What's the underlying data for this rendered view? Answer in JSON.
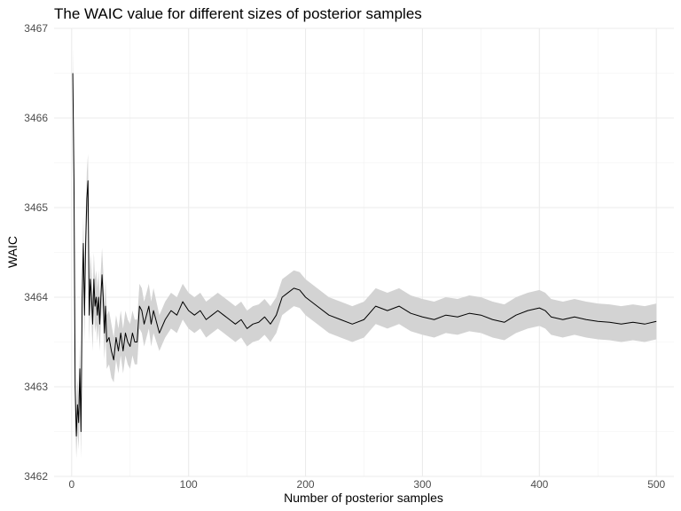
{
  "chart_data": {
    "type": "line",
    "title": "The WAIC value for different sizes of posterior samples",
    "xlabel": "Number of posterior samples",
    "ylabel": "WAIC",
    "xlim": [
      -15,
      515
    ],
    "ylim": [
      3462,
      3467
    ],
    "xticks": [
      0,
      100,
      200,
      300,
      400,
      500
    ],
    "yticks": [
      3462,
      3463,
      3464,
      3465,
      3466,
      3467
    ],
    "x_tick_labels": [
      "0",
      "100",
      "200",
      "300",
      "400",
      "500"
    ],
    "y_tick_labels": [
      "3462",
      "3463",
      "3464",
      "3465",
      "3466",
      "3467"
    ],
    "grid": true,
    "band_color": "#d3d3d3",
    "line_color": "#000000",
    "series": [
      {
        "x": [
          1,
          2,
          3,
          4,
          5,
          6,
          7,
          8,
          9,
          10,
          11,
          12,
          13,
          14,
          15,
          16,
          17,
          18,
          19,
          20,
          21,
          22,
          23,
          24,
          25,
          26,
          27,
          28,
          29,
          30,
          32,
          34,
          36,
          38,
          40,
          42,
          44,
          46,
          48,
          50,
          52,
          54,
          56,
          58,
          60,
          62,
          64,
          66,
          68,
          70,
          75,
          80,
          85,
          90,
          95,
          100,
          105,
          110,
          115,
          120,
          125,
          130,
          135,
          140,
          145,
          150,
          155,
          160,
          165,
          170,
          175,
          180,
          185,
          190,
          195,
          200,
          210,
          220,
          230,
          240,
          250,
          260,
          270,
          280,
          290,
          300,
          310,
          320,
          330,
          340,
          350,
          360,
          370,
          380,
          390,
          400,
          405,
          410,
          420,
          430,
          440,
          450,
          460,
          470,
          480,
          490,
          500
        ],
        "y": [
          3466.5,
          3465.3,
          3463.0,
          3462.45,
          3462.8,
          3462.6,
          3463.2,
          3462.5,
          3464.0,
          3464.6,
          3463.8,
          3464.6,
          3465.1,
          3465.3,
          3463.8,
          3464.2,
          3464.0,
          3463.7,
          3464.2,
          3463.9,
          3464.0,
          3463.8,
          3464.0,
          3463.7,
          3464.0,
          3464.25,
          3464.0,
          3463.6,
          3463.9,
          3463.5,
          3463.55,
          3463.4,
          3463.3,
          3463.55,
          3463.4,
          3463.6,
          3463.4,
          3463.6,
          3463.5,
          3463.45,
          3463.6,
          3463.5,
          3463.5,
          3463.9,
          3463.85,
          3463.7,
          3463.8,
          3463.9,
          3463.7,
          3463.85,
          3463.6,
          3463.75,
          3463.85,
          3463.8,
          3463.95,
          3463.85,
          3463.8,
          3463.85,
          3463.75,
          3463.8,
          3463.85,
          3463.8,
          3463.75,
          3463.7,
          3463.75,
          3463.65,
          3463.7,
          3463.72,
          3463.78,
          3463.7,
          3463.8,
          3464.0,
          3464.05,
          3464.1,
          3464.08,
          3464.0,
          3463.9,
          3463.8,
          3463.75,
          3463.7,
          3463.75,
          3463.9,
          3463.85,
          3463.9,
          3463.82,
          3463.78,
          3463.75,
          3463.8,
          3463.78,
          3463.82,
          3463.8,
          3463.75,
          3463.72,
          3463.8,
          3463.85,
          3463.88,
          3463.85,
          3463.78,
          3463.75,
          3463.78,
          3463.75,
          3463.73,
          3463.72,
          3463.7,
          3463.72,
          3463.7,
          3463.73
        ],
        "lower": [
          3466.2,
          3465.0,
          3462.7,
          3462.2,
          3462.5,
          3462.3,
          3462.9,
          3462.2,
          3463.7,
          3464.3,
          3463.5,
          3464.3,
          3464.8,
          3465.0,
          3463.5,
          3463.9,
          3463.7,
          3463.4,
          3463.9,
          3463.6,
          3463.7,
          3463.5,
          3463.7,
          3463.4,
          3463.7,
          3463.95,
          3463.7,
          3463.3,
          3463.6,
          3463.2,
          3463.25,
          3463.1,
          3463.05,
          3463.3,
          3463.15,
          3463.35,
          3463.15,
          3463.35,
          3463.25,
          3463.2,
          3463.35,
          3463.25,
          3463.25,
          3463.65,
          3463.6,
          3463.45,
          3463.55,
          3463.65,
          3463.45,
          3463.6,
          3463.4,
          3463.55,
          3463.65,
          3463.6,
          3463.75,
          3463.65,
          3463.6,
          3463.65,
          3463.55,
          3463.6,
          3463.65,
          3463.6,
          3463.55,
          3463.5,
          3463.55,
          3463.45,
          3463.5,
          3463.52,
          3463.58,
          3463.5,
          3463.6,
          3463.8,
          3463.85,
          3463.9,
          3463.88,
          3463.8,
          3463.7,
          3463.6,
          3463.55,
          3463.5,
          3463.55,
          3463.7,
          3463.65,
          3463.7,
          3463.62,
          3463.58,
          3463.55,
          3463.6,
          3463.58,
          3463.62,
          3463.6,
          3463.55,
          3463.52,
          3463.6,
          3463.65,
          3463.68,
          3463.65,
          3463.58,
          3463.55,
          3463.58,
          3463.55,
          3463.53,
          3463.52,
          3463.5,
          3463.52,
          3463.5,
          3463.53
        ],
        "upper": [
          3466.8,
          3465.6,
          3463.3,
          3462.7,
          3463.1,
          3462.9,
          3463.5,
          3462.8,
          3464.3,
          3464.9,
          3464.1,
          3464.9,
          3465.4,
          3465.6,
          3464.1,
          3464.5,
          3464.3,
          3464.0,
          3464.5,
          3464.2,
          3464.3,
          3464.1,
          3464.3,
          3464.0,
          3464.3,
          3464.55,
          3464.3,
          3463.9,
          3464.2,
          3463.8,
          3463.85,
          3463.7,
          3463.55,
          3463.8,
          3463.65,
          3463.85,
          3463.65,
          3463.85,
          3463.75,
          3463.7,
          3463.85,
          3463.75,
          3463.75,
          3464.15,
          3464.1,
          3463.95,
          3464.05,
          3464.15,
          3463.95,
          3464.1,
          3463.8,
          3463.95,
          3464.05,
          3464.0,
          3464.15,
          3464.05,
          3464.0,
          3464.05,
          3463.95,
          3464.0,
          3464.05,
          3464.0,
          3463.95,
          3463.9,
          3463.95,
          3463.85,
          3463.9,
          3463.92,
          3463.98,
          3463.9,
          3464.0,
          3464.2,
          3464.25,
          3464.3,
          3464.28,
          3464.2,
          3464.1,
          3464.0,
          3463.95,
          3463.9,
          3463.95,
          3464.1,
          3464.05,
          3464.1,
          3464.02,
          3463.98,
          3463.95,
          3464.0,
          3463.98,
          3464.02,
          3464.0,
          3463.95,
          3463.92,
          3464.0,
          3464.05,
          3464.08,
          3464.05,
          3463.98,
          3463.95,
          3463.98,
          3463.95,
          3463.93,
          3463.92,
          3463.9,
          3463.92,
          3463.9,
          3463.93
        ]
      }
    ]
  }
}
